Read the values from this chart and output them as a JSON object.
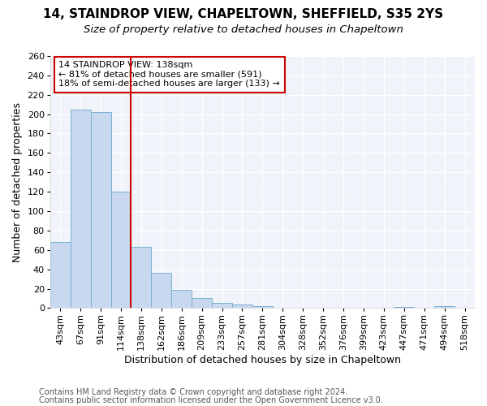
{
  "title_line1": "14, STAINDROP VIEW, CHAPELTOWN, SHEFFIELD, S35 2YS",
  "title_line2": "Size of property relative to detached houses in Chapeltown",
  "xlabel": "Distribution of detached houses by size in Chapeltown",
  "ylabel": "Number of detached properties",
  "categories": [
    "43sqm",
    "67sqm",
    "91sqm",
    "114sqm",
    "138sqm",
    "162sqm",
    "186sqm",
    "209sqm",
    "233sqm",
    "257sqm",
    "281sqm",
    "304sqm",
    "328sqm",
    "352sqm",
    "376sqm",
    "399sqm",
    "423sqm",
    "447sqm",
    "471sqm",
    "494sqm",
    "518sqm"
  ],
  "values": [
    68,
    205,
    202,
    120,
    63,
    36,
    19,
    10,
    5,
    4,
    2,
    0,
    0,
    0,
    0,
    0,
    0,
    1,
    0,
    2,
    0
  ],
  "bar_color": "#c8d8ee",
  "bar_edge_color": "#7bafd4",
  "highlight_line_color": "#cc0000",
  "annotation_text_line1": "14 STAINDROP VIEW: 138sqm",
  "annotation_text_line2": "← 81% of detached houses are smaller (591)",
  "annotation_text_line3": "18% of semi-detached houses are larger (133) →",
  "annotation_box_color": "#ffffff",
  "annotation_box_edge_color": "#cc0000",
  "ylim": [
    0,
    260
  ],
  "yticks": [
    0,
    20,
    40,
    60,
    80,
    100,
    120,
    140,
    160,
    180,
    200,
    220,
    240,
    260
  ],
  "footer_line1": "Contains HM Land Registry data © Crown copyright and database right 2024.",
  "footer_line2": "Contains public sector information licensed under the Open Government Licence v3.0.",
  "background_color": "#ffffff",
  "plot_bg_color": "#f0f4fa",
  "grid_color": "#ffffff",
  "title_fontsize": 11,
  "subtitle_fontsize": 9.5,
  "axis_label_fontsize": 9,
  "tick_fontsize": 8,
  "footer_fontsize": 7,
  "annotation_fontsize": 8
}
